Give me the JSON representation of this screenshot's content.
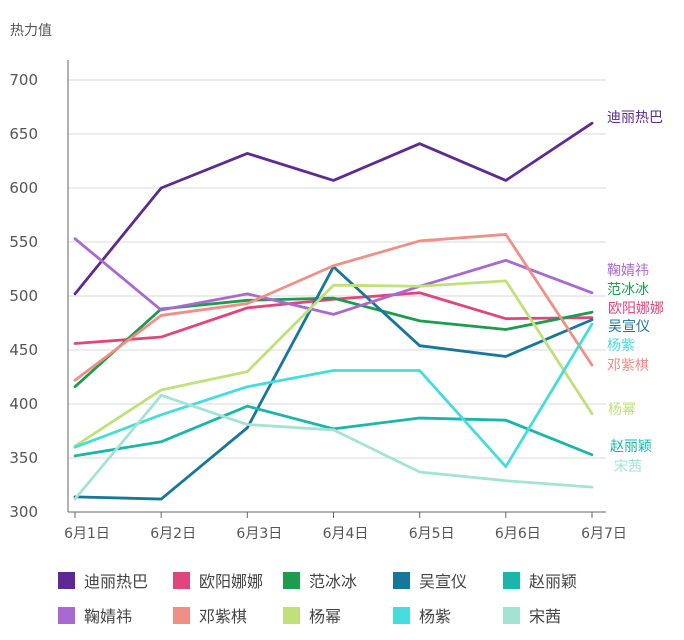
{
  "chart_data": {
    "type": "line",
    "title": "",
    "ylabel": "热力值",
    "xlabel": "",
    "ylim": [
      300,
      700
    ],
    "yticks": [
      300,
      350,
      400,
      450,
      500,
      550,
      600,
      650,
      700
    ],
    "grid": true,
    "categories": [
      "6月1日",
      "6月2日",
      "6月3日",
      "6月4日",
      "6月5日",
      "6月6日",
      "6月7日"
    ],
    "series": [
      {
        "name": "迪丽热巴",
        "color": "#5e2a91",
        "values": [
          502,
          600,
          632,
          607,
          641,
          607,
          660
        ]
      },
      {
        "name": "欧阳娜娜",
        "color": "#e0457b",
        "values": [
          456,
          462,
          489,
          497,
          503,
          479,
          480
        ]
      },
      {
        "name": "范冰冰",
        "color": "#1d9b4f",
        "values": [
          416,
          488,
          496,
          498,
          477,
          469,
          485
        ]
      },
      {
        "name": "吴宣仪",
        "color": "#17779b",
        "values": [
          314,
          312,
          378,
          527,
          454,
          444,
          478
        ]
      },
      {
        "name": "赵丽颖",
        "color": "#1bb5a9",
        "values": [
          352,
          365,
          398,
          377,
          387,
          385,
          353
        ]
      },
      {
        "name": "鞠婧祎",
        "color": "#a86ad0",
        "values": [
          553,
          487,
          502,
          483,
          509,
          533,
          503
        ]
      },
      {
        "name": "邓紫棋",
        "color": "#ef8f88",
        "values": [
          422,
          482,
          493,
          528,
          551,
          557,
          436
        ]
      },
      {
        "name": "杨幂",
        "color": "#bfe07b",
        "values": [
          361,
          413,
          430,
          510,
          509,
          514,
          391
        ]
      },
      {
        "name": "杨紫",
        "color": "#45dcde",
        "values": [
          360,
          390,
          416,
          431,
          431,
          342,
          474
        ]
      },
      {
        "name": "宋茜",
        "color": "#a4e3d4",
        "values": [
          312,
          408,
          381,
          376,
          337,
          329,
          323
        ]
      }
    ],
    "end_labels": [
      {
        "text": "迪丽热巴",
        "series": "迪丽热巴"
      },
      {
        "text": "鞠婧祎",
        "series": "鞠婧祎"
      },
      {
        "text": "范冰冰",
        "series": "范冰冰"
      },
      {
        "text": "欧阳娜娜",
        "series": "欧阳娜娜"
      },
      {
        "text": "吴宣仪",
        "series": "吴宣仪"
      },
      {
        "text": "杨紫",
        "series": "杨紫"
      },
      {
        "text": "邓紫棋",
        "series": "邓紫棋"
      },
      {
        "text": "杨幂",
        "series": "杨幂"
      },
      {
        "text": "赵丽颖",
        "series": "赵丽颖"
      },
      {
        "text": "宋茜",
        "series": "宋茜"
      }
    ],
    "legend": {
      "placement": "bottom",
      "rows": [
        [
          "迪丽热巴",
          "欧阳娜娜",
          "范冰冰",
          "吴宣仪",
          "赵丽颖"
        ],
        [
          "鞠婧祎",
          "邓紫棋",
          "杨幂",
          "杨紫",
          "宋茜"
        ]
      ]
    }
  }
}
